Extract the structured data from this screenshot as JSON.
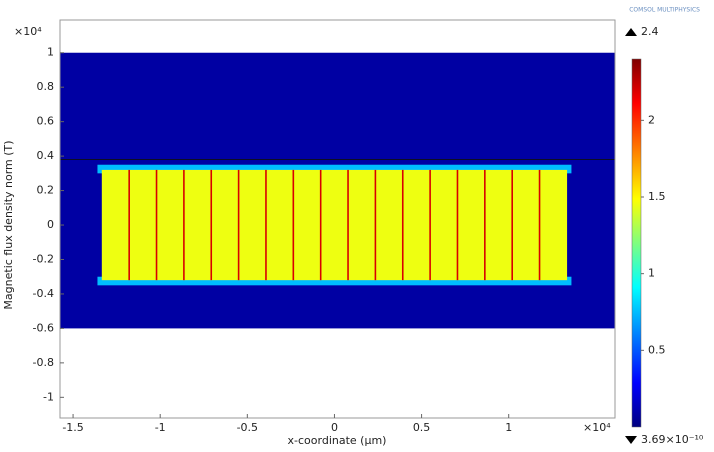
{
  "chart_data": {
    "type": "heatmap",
    "logo": "COMSOL MULTIPHYSICS",
    "y_multiplier": "×10⁴",
    "x_multiplier": "×10⁴",
    "xlabel": "x-coordinate (µm)",
    "ylabel": "Magnetic flux density norm (T)",
    "xlim": [
      -1.575,
      1.61
    ],
    "ylim": [
      -1.12,
      1.19
    ],
    "xticks": [
      -1.5,
      -1,
      -0.5,
      0,
      0.5,
      1
    ],
    "yticks": [
      1,
      0.8,
      0.6,
      0.4,
      0.2,
      0,
      -0.2,
      -0.4,
      -0.6,
      -0.8,
      -1
    ],
    "regions": [
      {
        "x": [
          -1.575,
          1.61
        ],
        "y": [
          -0.6,
          1
        ],
        "value": 0.08
      },
      {
        "x": [
          -1.36,
          1.36
        ],
        "y": [
          0.3,
          0.35
        ],
        "value": 0.75
      },
      {
        "x": [
          -1.36,
          1.36
        ],
        "y": [
          -0.35,
          -0.3
        ],
        "value": 0.75
      },
      {
        "x": [
          -1.335,
          1.335
        ],
        "y": [
          -0.32,
          0.32
        ],
        "value": 1.45
      }
    ],
    "dividers": {
      "x": [
        -1.178,
        -1.021,
        -0.864,
        -0.707,
        -0.55,
        -0.393,
        -0.236,
        -0.079,
        0.078,
        0.235,
        0.392,
        0.549,
        0.706,
        0.863,
        1.02,
        1.177
      ],
      "y": [
        -0.32,
        0.32
      ],
      "value": 2.2
    },
    "boundaries": [
      0.38
    ],
    "colorbar": {
      "max": 2.4,
      "min": {
        "value": 3.69e-10,
        "label": "3.69×10⁻¹⁰"
      },
      "ticks": [
        0.5,
        1,
        1.5,
        2
      ]
    }
  }
}
